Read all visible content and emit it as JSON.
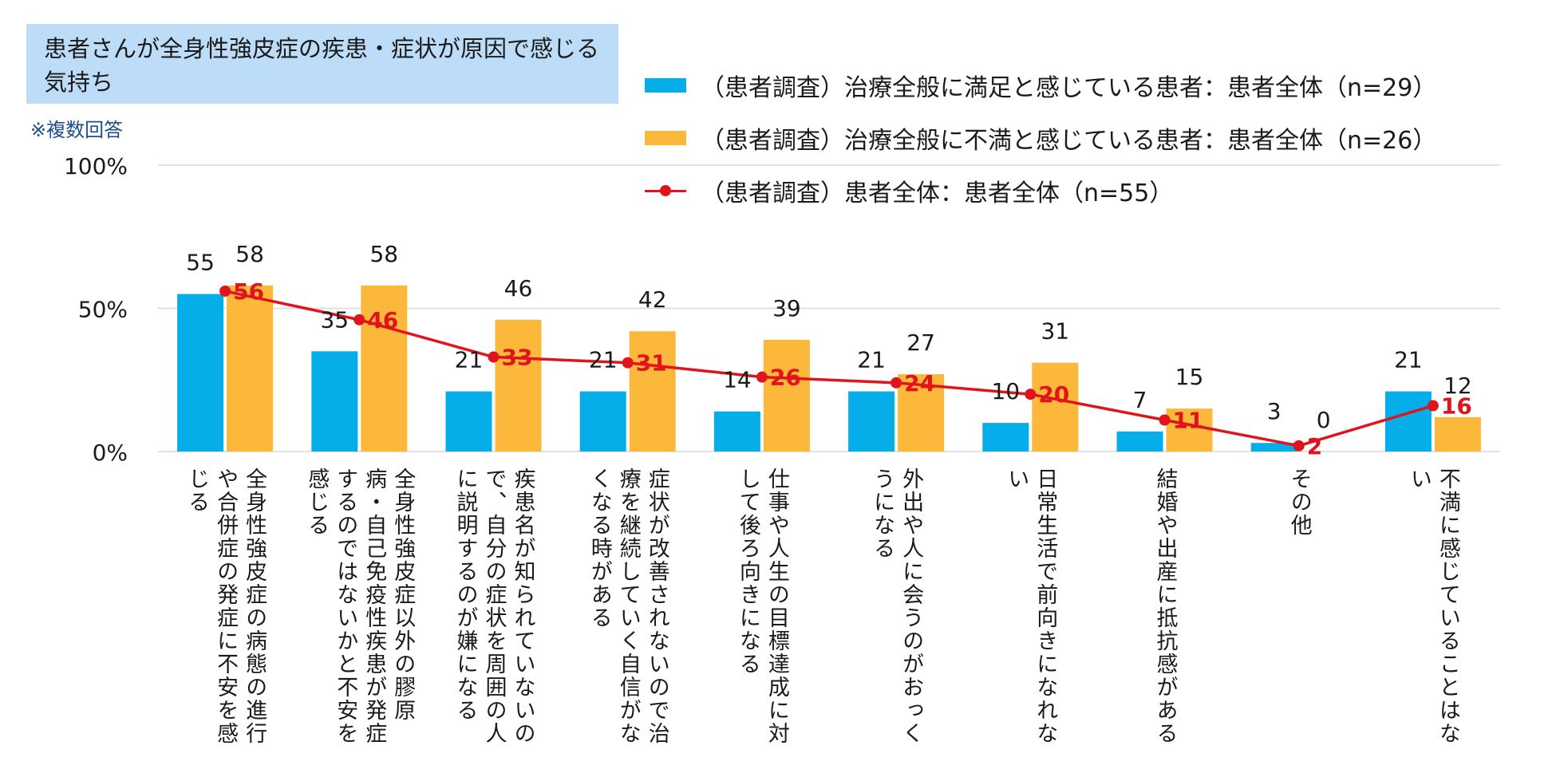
{
  "title": "患者さんが全身性強皮症の疾患・症状が原因で感じる気持ち",
  "note": "※複数回答",
  "colors": {
    "series1": "#05aee8",
    "series2": "#fcb83a",
    "line": "#e0141c",
    "grid": "#d9d9d9"
  },
  "chart_data": {
    "type": "bar",
    "title": "患者さんが全身性強皮症の疾患・症状が原因で感じる気持ち",
    "note": "※複数回答",
    "ylim": [
      0,
      100
    ],
    "yticks": [
      "0%",
      "50%",
      "100%"
    ],
    "ytick_values": [
      0,
      50,
      100
    ],
    "legend_position": "top-right",
    "categories": [
      "全身性強皮症の病態の進行や合併症の発症に不安を感じる",
      "全身性強皮症以外の膠原病・自己免疫性疾患が発症するのではないかと不安を感じる",
      "疾患名が知られていないので、自分の症状を周囲の人に説明するのが嫌になる",
      "症状が改善されないので治療を継続していく自信がなくなる時がある",
      "仕事や人生の目標達成に対して後ろ向きになる",
      "外出や人に会うのがおっくうになる",
      "日常生活で前向きになれない",
      "結婚や出産に抵抗感がある",
      "その他",
      "不満に感じていることはない"
    ],
    "series": [
      {
        "name": "（患者調査）治療全般に満足と感じている患者：患者全体（n=29）",
        "kind": "bar",
        "values": [
          55,
          35,
          21,
          21,
          14,
          21,
          10,
          7,
          3,
          21
        ]
      },
      {
        "name": "（患者調査）治療全般に不満と感じている患者：患者全体（n=26）",
        "kind": "bar",
        "values": [
          58,
          58,
          46,
          42,
          39,
          27,
          31,
          15,
          0,
          12
        ]
      },
      {
        "name": "（患者調査）患者全体：患者全体（n=55）",
        "kind": "line",
        "values": [
          56,
          46,
          33,
          31,
          26,
          24,
          20,
          11,
          2,
          16
        ]
      }
    ]
  }
}
